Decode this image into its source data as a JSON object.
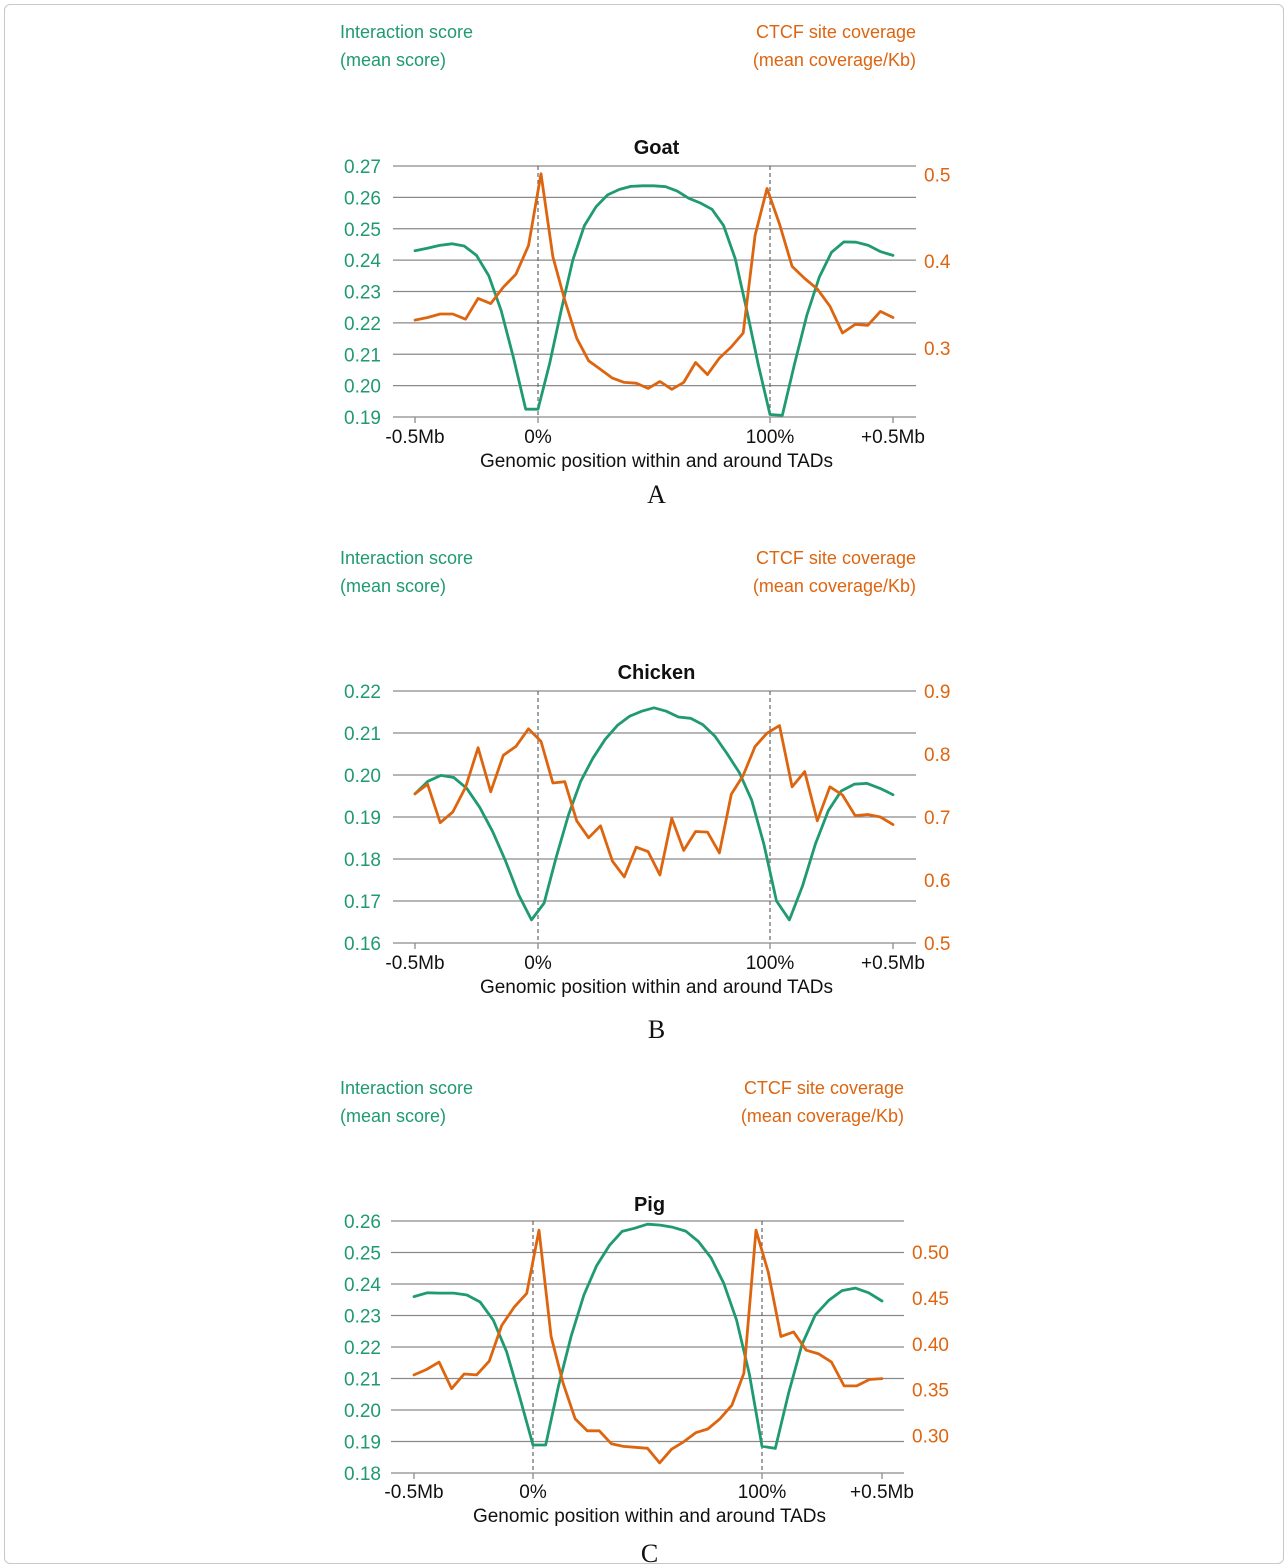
{
  "colors": {
    "interaction": "#1f9a72",
    "ctcf": "#dd6510",
    "grid": "#8a8a8a",
    "dashed": "#666666",
    "text": "#111111"
  },
  "chart_data": [
    {
      "panel_label": "A",
      "type": "line",
      "title": "Goat",
      "left_axis": {
        "label_line1": "Interaction score",
        "label_line2": "(mean score)",
        "ylim": [
          0.19,
          0.27
        ],
        "ticks": [
          "0.19",
          "0.20",
          "0.21",
          "0.22",
          "0.23",
          "0.24",
          "0.25",
          "0.26",
          "0.27"
        ]
      },
      "right_axis": {
        "label_line1": "CTCF site coverage",
        "label_line2": "(mean coverage/Kb)",
        "ylim": [
          0.22,
          0.51
        ],
        "ticks": [
          "0.3",
          "0.4",
          "0.5"
        ],
        "tick_values": [
          0.3,
          0.4,
          0.5
        ]
      },
      "xlabel": "Genomic position within and around TADs",
      "x_ticks": [
        "-0.5Mb",
        "0%",
        "100%",
        "+0.5Mb"
      ],
      "x_tick_positions": [
        0,
        10,
        30,
        40
      ],
      "boundaries": [
        10,
        30
      ],
      "grid": true,
      "series": [
        {
          "axis": "left",
          "values": [
            0.243,
            0.2438,
            0.2447,
            0.2452,
            0.2445,
            0.2415,
            0.235,
            0.224,
            0.209,
            0.1925,
            0.1925,
            0.207,
            0.224,
            0.24,
            0.251,
            0.257,
            0.2608,
            0.2625,
            0.2635,
            0.2637,
            0.2637,
            0.2634,
            0.262,
            0.2597,
            0.2582,
            0.2562,
            0.251,
            0.2405,
            0.224,
            0.2065,
            0.1908,
            0.1905,
            0.207,
            0.2225,
            0.2345,
            0.2425,
            0.2458,
            0.2457,
            0.2447,
            0.2427,
            0.2415
          ]
        },
        {
          "axis": "right",
          "values": [
            0.332,
            0.335,
            0.339,
            0.339,
            0.333,
            0.357,
            0.351,
            0.37,
            0.385,
            0.418,
            0.501,
            0.405,
            0.355,
            0.311,
            0.285,
            0.275,
            0.265,
            0.26,
            0.259,
            0.253,
            0.261,
            0.252,
            0.26,
            0.283,
            0.269,
            0.288,
            0.301,
            0.317,
            0.43,
            0.484,
            0.443,
            0.394,
            0.38,
            0.368,
            0.348,
            0.317,
            0.327,
            0.326,
            0.342,
            0.335
          ]
        }
      ]
    },
    {
      "panel_label": "B",
      "type": "line",
      "title": "Chicken",
      "left_axis": {
        "label_line1": "Interaction score",
        "label_line2": "(mean score)",
        "ylim": [
          0.16,
          0.22
        ],
        "ticks": [
          "0.16",
          "0.17",
          "0.18",
          "0.19",
          "0.20",
          "0.21",
          "0.22"
        ]
      },
      "right_axis": {
        "label_line1": "CTCF site coverage",
        "label_line2": "(mean coverage/Kb)",
        "ylim": [
          0.5,
          0.9
        ],
        "ticks": [
          "0.5",
          "0.6",
          "0.7",
          "0.8",
          "0.9"
        ],
        "tick_values": [
          0.5,
          0.6,
          0.7,
          0.8,
          0.9
        ]
      },
      "xlabel": "Genomic position within and around TADs",
      "x_ticks": [
        "-0.5Mb",
        "0%",
        "100%",
        "+0.5Mb"
      ],
      "x_tick_positions": [
        0,
        10,
        30,
        40
      ],
      "boundaries": [
        10,
        30
      ],
      "grid": true,
      "series": [
        {
          "axis": "left",
          "values": [
            0.1955,
            0.1985,
            0.1999,
            0.1994,
            0.1968,
            0.1923,
            0.1865,
            0.1795,
            0.1715,
            0.1655,
            0.1695,
            0.1805,
            0.1905,
            0.1985,
            0.204,
            0.2085,
            0.2118,
            0.214,
            0.2152,
            0.216,
            0.2152,
            0.2138,
            0.2135,
            0.212,
            0.2092,
            0.205,
            0.2005,
            0.194,
            0.1835,
            0.17,
            0.1655,
            0.1735,
            0.1835,
            0.1915,
            0.1962,
            0.1978,
            0.198,
            0.1968,
            0.1953
          ]
        },
        {
          "axis": "right",
          "values": [
            0.737,
            0.752,
            0.691,
            0.708,
            0.747,
            0.81,
            0.74,
            0.798,
            0.812,
            0.84,
            0.82,
            0.754,
            0.756,
            0.694,
            0.667,
            0.686,
            0.63,
            0.605,
            0.652,
            0.645,
            0.608,
            0.698,
            0.647,
            0.677,
            0.676,
            0.643,
            0.736,
            0.766,
            0.812,
            0.833,
            0.845,
            0.748,
            0.772,
            0.694,
            0.748,
            0.735,
            0.702,
            0.704,
            0.7,
            0.688
          ]
        }
      ]
    },
    {
      "panel_label": "C",
      "type": "line",
      "title": "Pig",
      "left_axis": {
        "label_line1": "Interaction score",
        "label_line2": "(mean score)",
        "ylim": [
          0.18,
          0.26
        ],
        "ticks": [
          "0.18",
          "0.19",
          "0.20",
          "0.21",
          "0.22",
          "0.23",
          "0.24",
          "0.25",
          "0.26"
        ]
      },
      "right_axis": {
        "label_line1": "CTCF site coverage",
        "label_line2": "(mean coverage/Kb)",
        "ylim": [
          0.259,
          0.534
        ],
        "ticks": [
          "0.30",
          "0.35",
          "0.40",
          "0.45",
          "0.50"
        ],
        "tick_values": [
          0.3,
          0.35,
          0.4,
          0.45,
          0.5
        ]
      },
      "xlabel": "Genomic position within and around TADs",
      "x_ticks": [
        "-0.5Mb",
        "0%",
        "100%",
        "+0.5Mb"
      ],
      "x_tick_positions": [
        0,
        10,
        30,
        40
      ],
      "boundaries": [
        10,
        30
      ],
      "grid": true,
      "series": [
        {
          "axis": "left",
          "values": [
            0.236,
            0.2372,
            0.2371,
            0.2371,
            0.2365,
            0.2343,
            0.2285,
            0.2185,
            0.204,
            0.1889,
            0.1889,
            0.2075,
            0.2235,
            0.2365,
            0.2458,
            0.2522,
            0.2567,
            0.2577,
            0.259,
            0.2587,
            0.258,
            0.2568,
            0.2535,
            0.2483,
            0.2402,
            0.2285,
            0.2115,
            0.1885,
            0.1878,
            0.2055,
            0.2208,
            0.2302,
            0.2348,
            0.2379,
            0.2387,
            0.2372,
            0.2346
          ]
        },
        {
          "axis": "right",
          "values": [
            0.366,
            0.372,
            0.38,
            0.351,
            0.367,
            0.366,
            0.381,
            0.42,
            0.44,
            0.455,
            0.524,
            0.408,
            0.357,
            0.318,
            0.305,
            0.305,
            0.291,
            0.288,
            0.287,
            0.286,
            0.27,
            0.285,
            0.293,
            0.303,
            0.307,
            0.318,
            0.333,
            0.368,
            0.524,
            0.478,
            0.408,
            0.413,
            0.393,
            0.389,
            0.38,
            0.354,
            0.354,
            0.361,
            0.362
          ]
        }
      ]
    }
  ]
}
